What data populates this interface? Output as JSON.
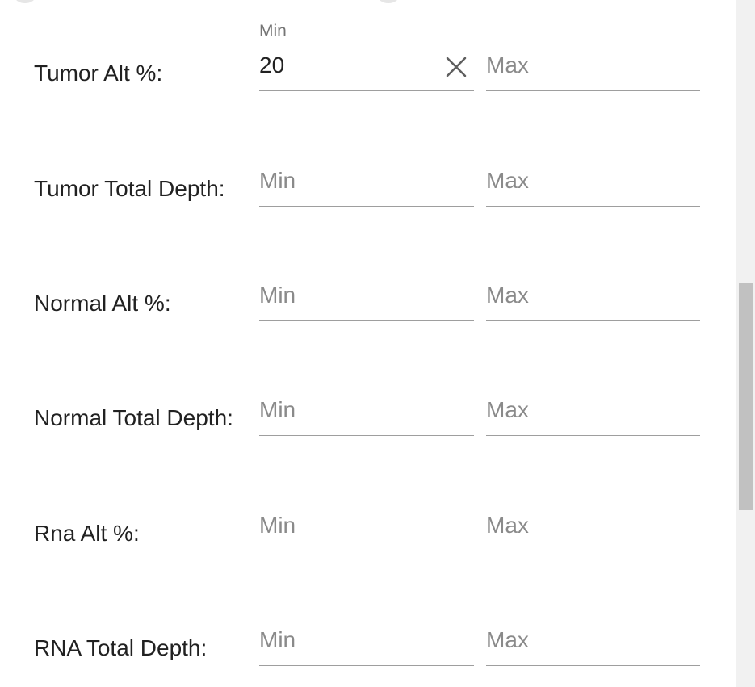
{
  "filters": [
    {
      "label": "Tumor Alt %:",
      "min_value": "20",
      "min_floating_label": "Min",
      "min_placeholder": "Min",
      "max_placeholder": "Max"
    },
    {
      "label": "Tumor Total Depth:",
      "min_placeholder": "Min",
      "max_placeholder": "Max"
    },
    {
      "label": "Normal Alt %:",
      "min_placeholder": "Min",
      "max_placeholder": "Max"
    },
    {
      "label": "Normal Total Depth:",
      "min_placeholder": "Min",
      "max_placeholder": "Max"
    },
    {
      "label": "Rna Alt %:",
      "min_placeholder": "Min",
      "max_placeholder": "Max"
    },
    {
      "label": "RNA Total Depth:",
      "min_placeholder": "Min",
      "max_placeholder": "Max"
    }
  ],
  "icons": {
    "clear": "close-icon"
  },
  "colors": {
    "text": "#212121",
    "placeholder": "#8a8a8a",
    "underline": "#9e9e9e",
    "floating_label": "#757575",
    "scrollbar_track": "#f1f1f1",
    "scrollbar_thumb": "#c1c1c1"
  }
}
